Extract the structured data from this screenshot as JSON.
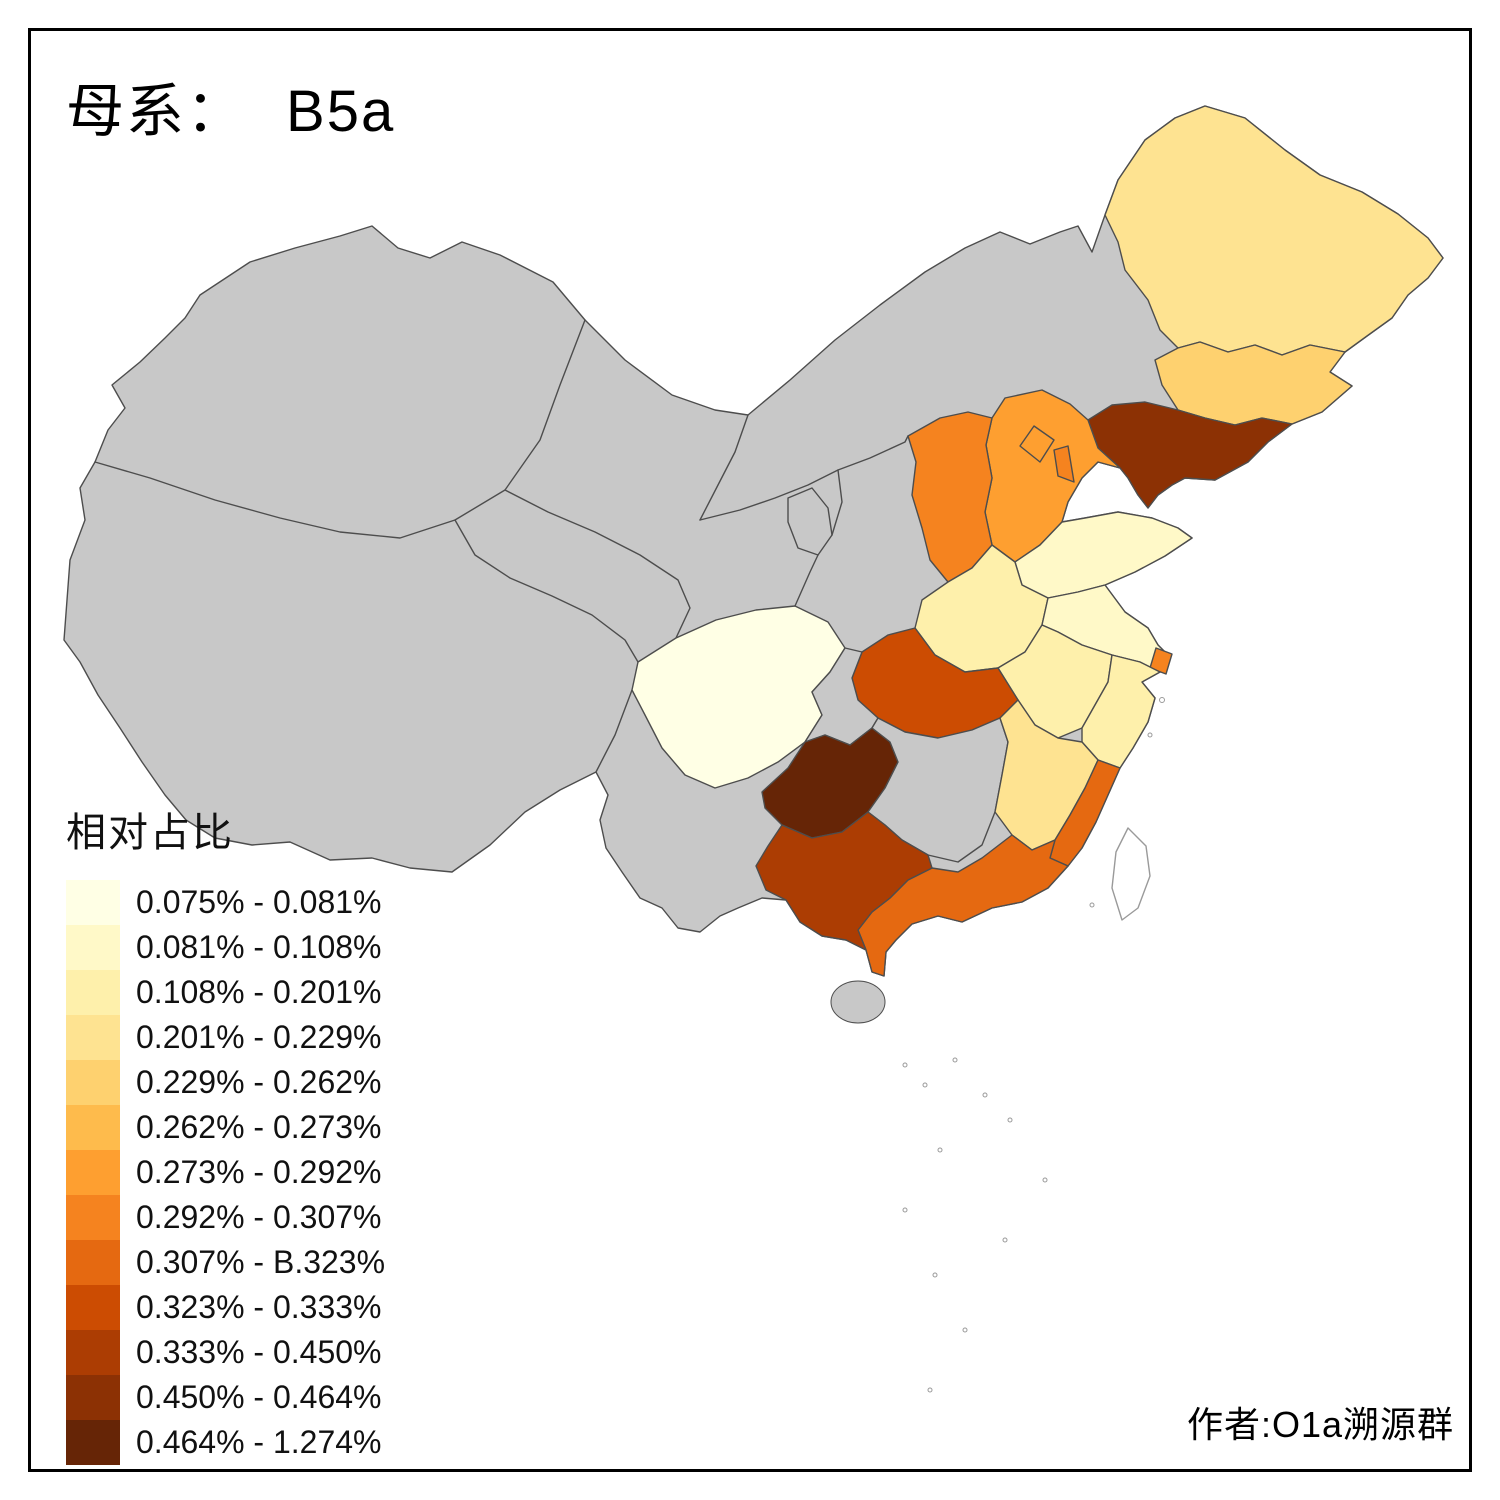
{
  "title": {
    "prefix": "母系：",
    "value": "B5a"
  },
  "legend": {
    "title": "相对占比",
    "items": [
      {
        "color": "#FFFFE5",
        "label": "0.075% - 0.081%"
      },
      {
        "color": "#FFF9C8",
        "label": "0.081% - 0.108%"
      },
      {
        "color": "#FEF0AB",
        "label": "0.108% - 0.201%"
      },
      {
        "color": "#FEE391",
        "label": "0.201% - 0.229%"
      },
      {
        "color": "#FED16F",
        "label": "0.229% - 0.262%"
      },
      {
        "color": "#FEBB4C",
        "label": "0.262% - 0.273%"
      },
      {
        "color": "#FE9F30",
        "label": "0.273% - 0.292%"
      },
      {
        "color": "#F5831F",
        "label": "0.292% - 0.307%"
      },
      {
        "color": "#E56911",
        "label": "0.307% - B.323%"
      },
      {
        "color": "#CC4C02",
        "label": "0.323% - 0.333%"
      },
      {
        "color": "#AC3D03",
        "label": "0.333% - 0.450%"
      },
      {
        "color": "#8C3104",
        "label": "0.450% - 0.464%"
      },
      {
        "color": "#662506",
        "label": "0.464% - 1.274%"
      }
    ]
  },
  "attribution": "作者:O1a溯源群",
  "map": {
    "no_data_color": "#C8C8C8",
    "border_color": "#4D4D4D",
    "sea_color": "#FFFFFF",
    "bins": [
      "#FFFFE5",
      "#FFF9C8",
      "#FEF0AB",
      "#FEE391",
      "#FED16F",
      "#FEBB4C",
      "#FE9F30",
      "#F5831F",
      "#E56911",
      "#CC4C02",
      "#AC3D03",
      "#8C3104",
      "#662506"
    ],
    "provinces": {
      "heilongjiang": {
        "bin": 4
      },
      "jilin": {
        "bin": 5
      },
      "liaoning": {
        "bin": 12
      },
      "neimenggu": {
        "bin": null
      },
      "beijing": {
        "bin": 7
      },
      "tianjin": {
        "bin": 8
      },
      "hebei": {
        "bin": 7
      },
      "shanxi": {
        "bin": 8
      },
      "shandong": {
        "bin": 2
      },
      "henan": {
        "bin": 3
      },
      "jiangsu": {
        "bin": 2
      },
      "anhui": {
        "bin": 3
      },
      "shanghai": {
        "bin": 8
      },
      "zhejiang": {
        "bin": 3
      },
      "hubei": {
        "bin": 10
      },
      "sichuan": {
        "bin": 1
      },
      "chongqing": {
        "bin": null
      },
      "guizhou": {
        "bin": 13
      },
      "hunan": {
        "bin": null
      },
      "jiangxi": {
        "bin": 4
      },
      "fujian": {
        "bin": 9
      },
      "guangdong": {
        "bin": 9
      },
      "guangxi": {
        "bin": 11
      },
      "yunnan": {
        "bin": null
      },
      "hainan": {
        "bin": null
      },
      "taiwan": {
        "bin": null,
        "fill": "#FFFFFF",
        "stroke": "#9A9A9A"
      },
      "xinjiang": {
        "bin": null
      },
      "xizang": {
        "bin": null
      },
      "qinghai": {
        "bin": null
      },
      "gansu": {
        "bin": null
      },
      "ningxia": {
        "bin": null
      },
      "shaanxi": {
        "bin": null
      }
    }
  }
}
